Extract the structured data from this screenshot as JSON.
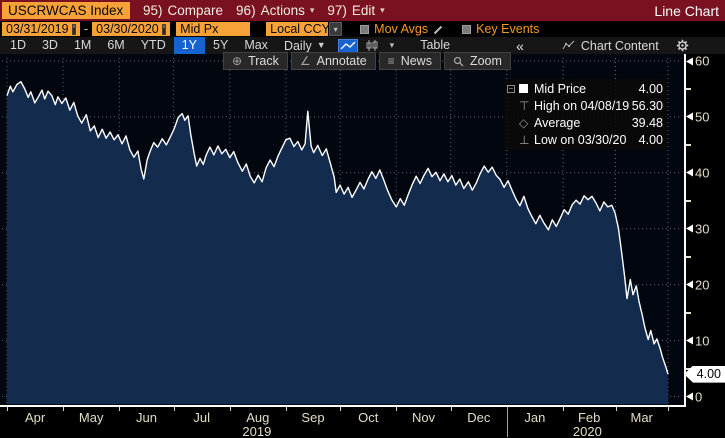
{
  "header": {
    "security": "USCRWCAS Index",
    "menu": [
      {
        "num": "95)",
        "label": "Compare"
      },
      {
        "num": "96)",
        "label": "Actions"
      },
      {
        "num": "97)",
        "label": "Edit"
      }
    ],
    "title": "Line Chart"
  },
  "settings": {
    "date_from": "03/31/2019",
    "date_to": "03/30/2020",
    "range_separator": "-",
    "price_field": "Mid Px",
    "currency": "Local CCY",
    "mov_avgs_label": "Mov Avgs",
    "key_events_label": "Key Events"
  },
  "toolbar": {
    "ranges": [
      "1D",
      "3D",
      "1M",
      "6M",
      "YTD",
      "1Y",
      "5Y",
      "Max"
    ],
    "selected_range": "1Y",
    "period": "Daily",
    "table_label": "Table",
    "collapse_label": "«",
    "chart_content_label": "Chart Content"
  },
  "chart_tools": [
    {
      "icon": "crosshair-icon",
      "label": "Track"
    },
    {
      "icon": "annotate-icon",
      "label": "Annotate"
    },
    {
      "icon": "news-icon",
      "label": "News"
    },
    {
      "icon": "magnifier-icon",
      "label": "Zoom"
    }
  ],
  "legend": {
    "rows": [
      {
        "icon": "white-square-marker",
        "label": "Mid Price",
        "value": "4.00"
      },
      {
        "icon": "high-marker",
        "label": "High on 04/08/19",
        "value": "56.30"
      },
      {
        "icon": "average-marker",
        "label": "Average",
        "value": "39.48"
      },
      {
        "icon": "low-marker",
        "label": "Low on 03/30/20",
        "value": "4.00"
      }
    ]
  },
  "axis": {
    "last_price_label": "4.00"
  },
  "colors": {
    "header_bg": "#7a1120",
    "amber": "#f7a238",
    "amber_text": "#f79a1f",
    "selected_blue": "#1663cf",
    "chart_fill": "#132c4e",
    "chart_line": "#ffffff",
    "grid": "#55687e",
    "axis_text": "#e3dcc3"
  },
  "chart_data": {
    "type": "area",
    "title": "USCRWCAS Index, Mid Px, 1Y Daily, Local CCY",
    "xlabel": "Date (03/31/2019 - 03/30/2020)",
    "ylabel": "Mid Price",
    "ylim": [
      0,
      60
    ],
    "y_ticks": [
      0,
      10,
      20,
      30,
      40,
      50,
      60
    ],
    "grid": true,
    "legend_position": "top-right",
    "x_month_labels": [
      "Apr",
      "May",
      "Jun",
      "Jul",
      "Aug",
      "Sep",
      "Oct",
      "Nov",
      "Dec",
      "Jan",
      "Feb",
      "Mar"
    ],
    "x_year_labels": [
      {
        "label": "2019",
        "span_months": "Apr-Dec"
      },
      {
        "label": "2020",
        "span_months": "Jan-Mar"
      }
    ],
    "month_boundaries": [
      0,
      0.0849,
      0.1699,
      0.2521,
      0.337,
      0.4219,
      0.5041,
      0.589,
      0.6712,
      0.7562,
      0.8411,
      0.9205,
      1.0
    ],
    "stats": {
      "last": 4.0,
      "high": 56.3,
      "high_date": "04/08/19",
      "average": 39.48,
      "low": 4.0,
      "low_date": "03/30/20"
    },
    "series": [
      {
        "name": "Mid Price",
        "color": "#ffffff",
        "x_unit": "fraction of date range",
        "points": [
          [
            0,
            53.8
          ],
          [
            0.005,
            55.5
          ],
          [
            0.009,
            54.5
          ],
          [
            0.015,
            55.8
          ],
          [
            0.021,
            56.3
          ],
          [
            0.027,
            55
          ],
          [
            0.032,
            53.5
          ],
          [
            0.036,
            54.5
          ],
          [
            0.042,
            52.5
          ],
          [
            0.047,
            53.5
          ],
          [
            0.053,
            54.8
          ],
          [
            0.057,
            53.2
          ],
          [
            0.062,
            54.6
          ],
          [
            0.068,
            53.8
          ],
          [
            0.073,
            52.2
          ],
          [
            0.077,
            53.6
          ],
          [
            0.083,
            52.4
          ],
          [
            0.089,
            53.4
          ],
          [
            0.095,
            51.2
          ],
          [
            0.101,
            52.6
          ],
          [
            0.107,
            50.2
          ],
          [
            0.113,
            48.9
          ],
          [
            0.12,
            50.4
          ],
          [
            0.126,
            47.5
          ],
          [
            0.132,
            48.4
          ],
          [
            0.138,
            46.3
          ],
          [
            0.144,
            47.8
          ],
          [
            0.15,
            46.2
          ],
          [
            0.156,
            47.3
          ],
          [
            0.162,
            45.9
          ],
          [
            0.168,
            46.8
          ],
          [
            0.174,
            45.2
          ],
          [
            0.18,
            46.6
          ],
          [
            0.186,
            44.1
          ],
          [
            0.192,
            42.8
          ],
          [
            0.198,
            43.9
          ],
          [
            0.203,
            40.6
          ],
          [
            0.207,
            38.9
          ],
          [
            0.212,
            42.3
          ],
          [
            0.216,
            43.7
          ],
          [
            0.222,
            45.4
          ],
          [
            0.228,
            44.6
          ],
          [
            0.235,
            46.1
          ],
          [
            0.241,
            45
          ],
          [
            0.247,
            46.4
          ],
          [
            0.253,
            47.9
          ],
          [
            0.259,
            49.9
          ],
          [
            0.265,
            50.6
          ],
          [
            0.269,
            49.4
          ],
          [
            0.274,
            50.2
          ],
          [
            0.278,
            46.8
          ],
          [
            0.283,
            43.5
          ],
          [
            0.287,
            41.2
          ],
          [
            0.292,
            42.6
          ],
          [
            0.297,
            41.5
          ],
          [
            0.301,
            43.1
          ],
          [
            0.307,
            44.6
          ],
          [
            0.313,
            43.2
          ],
          [
            0.319,
            44.8
          ],
          [
            0.325,
            43.4
          ],
          [
            0.331,
            44.2
          ],
          [
            0.337,
            42.7
          ],
          [
            0.343,
            43.8
          ],
          [
            0.349,
            41.9
          ],
          [
            0.356,
            40.3
          ],
          [
            0.362,
            41.6
          ],
          [
            0.368,
            39.4
          ],
          [
            0.374,
            38.2
          ],
          [
            0.38,
            39.6
          ],
          [
            0.386,
            38.4
          ],
          [
            0.392,
            40.9
          ],
          [
            0.398,
            42.3
          ],
          [
            0.404,
            41.1
          ],
          [
            0.41,
            43
          ],
          [
            0.416,
            44.5
          ],
          [
            0.422,
            45.9
          ],
          [
            0.428,
            46.2
          ],
          [
            0.434,
            44.7
          ],
          [
            0.44,
            45.6
          ],
          [
            0.446,
            44.1
          ],
          [
            0.451,
            45.2
          ],
          [
            0.455,
            51
          ],
          [
            0.46,
            44.8
          ],
          [
            0.464,
            43.6
          ],
          [
            0.47,
            44.9
          ],
          [
            0.477,
            43.1
          ],
          [
            0.483,
            44.3
          ],
          [
            0.489,
            41.8
          ],
          [
            0.495,
            39.2
          ],
          [
            0.498,
            36.5
          ],
          [
            0.504,
            37.8
          ],
          [
            0.51,
            36.2
          ],
          [
            0.516,
            37.4
          ],
          [
            0.522,
            35.6
          ],
          [
            0.528,
            36.9
          ],
          [
            0.534,
            38.3
          ],
          [
            0.54,
            37.1
          ],
          [
            0.546,
            38.8
          ],
          [
            0.552,
            40.2
          ],
          [
            0.558,
            39
          ],
          [
            0.564,
            40.5
          ],
          [
            0.57,
            38.7
          ],
          [
            0.576,
            36.8
          ],
          [
            0.582,
            35.2
          ],
          [
            0.589,
            33.9
          ],
          [
            0.595,
            35.4
          ],
          [
            0.601,
            34.2
          ],
          [
            0.607,
            36.1
          ],
          [
            0.613,
            37.9
          ],
          [
            0.619,
            39.4
          ],
          [
            0.625,
            38.1
          ],
          [
            0.631,
            39.6
          ],
          [
            0.637,
            40.8
          ],
          [
            0.643,
            39.3
          ],
          [
            0.649,
            40.1
          ],
          [
            0.655,
            38.6
          ],
          [
            0.661,
            39.8
          ],
          [
            0.667,
            38.4
          ],
          [
            0.673,
            39.5
          ],
          [
            0.679,
            37.8
          ],
          [
            0.685,
            38.9
          ],
          [
            0.691,
            37.2
          ],
          [
            0.698,
            38.4
          ],
          [
            0.704,
            36.9
          ],
          [
            0.71,
            38.2
          ],
          [
            0.716,
            39.9
          ],
          [
            0.722,
            41.2
          ],
          [
            0.728,
            40.1
          ],
          [
            0.734,
            41
          ],
          [
            0.74,
            39.6
          ],
          [
            0.746,
            38.8
          ],
          [
            0.752,
            37.4
          ],
          [
            0.758,
            38.6
          ],
          [
            0.764,
            36.9
          ],
          [
            0.77,
            35.3
          ],
          [
            0.776,
            34.1
          ],
          [
            0.782,
            35.8
          ],
          [
            0.788,
            33.6
          ],
          [
            0.794,
            32.2
          ],
          [
            0.8,
            30.9
          ],
          [
            0.806,
            32.4
          ],
          [
            0.812,
            31.1
          ],
          [
            0.819,
            29.8
          ],
          [
            0.825,
            31.6
          ],
          [
            0.831,
            30.4
          ],
          [
            0.837,
            31.9
          ],
          [
            0.843,
            33.4
          ],
          [
            0.849,
            32.6
          ],
          [
            0.855,
            34.3
          ],
          [
            0.861,
            35.1
          ],
          [
            0.867,
            34.4
          ],
          [
            0.873,
            35.9
          ],
          [
            0.879,
            35.2
          ],
          [
            0.885,
            35.8
          ],
          [
            0.891,
            34.6
          ],
          [
            0.897,
            33.2
          ],
          [
            0.903,
            34.8
          ],
          [
            0.909,
            33.9
          ],
          [
            0.915,
            34.2
          ],
          [
            0.92,
            32.8
          ],
          [
            0.925,
            30.1
          ],
          [
            0.929,
            26.5
          ],
          [
            0.934,
            21.8
          ],
          [
            0.938,
            17.5
          ],
          [
            0.943,
            20.9
          ],
          [
            0.947,
            18.2
          ],
          [
            0.952,
            19.8
          ],
          [
            0.956,
            17.1
          ],
          [
            0.961,
            14.6
          ],
          [
            0.965,
            12.3
          ],
          [
            0.97,
            10.2
          ],
          [
            0.974,
            11.8
          ],
          [
            0.979,
            9.4
          ],
          [
            0.983,
            10.3
          ],
          [
            0.988,
            8.6
          ],
          [
            0.992,
            6.9
          ],
          [
            0.997,
            5.2
          ],
          [
            1,
            4
          ]
        ]
      }
    ]
  }
}
